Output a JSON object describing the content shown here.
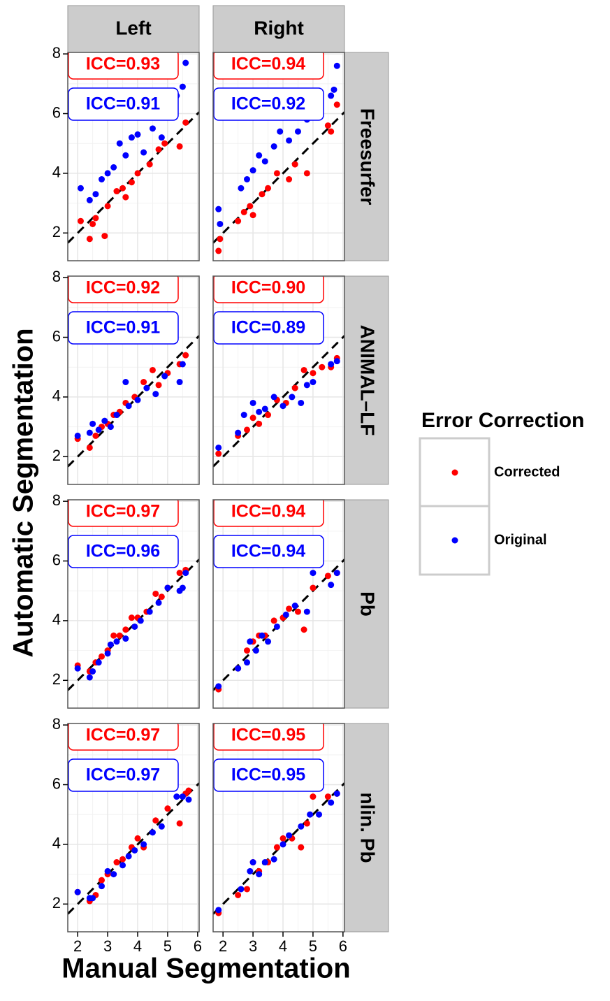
{
  "chart_data": {
    "type": "scatter",
    "x_label": "Manual Segmentation",
    "y_label": "Automatic Segmentation",
    "legend_title": "Error Correction",
    "legend": [
      {
        "name": "Corrected",
        "color": "#ff0000"
      },
      {
        "name": "Original",
        "color": "#0000ff"
      }
    ],
    "columns": [
      "Left",
      "Right"
    ],
    "rows": [
      "Freesurfer",
      "ANIMAL–LF",
      "Pb",
      "nlin. Pb"
    ],
    "xlim": [
      1.67,
      6.05
    ],
    "ylim": [
      1.07,
      8.05
    ],
    "xticks": [
      2,
      3,
      4,
      5,
      6
    ],
    "yticks": [
      2,
      4,
      6,
      8
    ],
    "grid": true,
    "panels": [
      {
        "column": 0,
        "row": 0,
        "annotations": [
          "ICC=0.93",
          "ICC=0.91"
        ],
        "series": [
          {
            "x": [
              2.1,
              2.4,
              2.5,
              2.6,
              2.9,
              3.0,
              3.3,
              3.5,
              3.6,
              3.8,
              4.0,
              4.4,
              4.7,
              4.9,
              5.4,
              5.6
            ],
            "values": [
              2.4,
              1.8,
              2.3,
              2.5,
              1.9,
              2.9,
              3.4,
              3.5,
              3.2,
              3.7,
              4.0,
              4.3,
              4.8,
              5.0,
              4.9,
              5.7
            ]
          },
          {
            "x": [
              2.1,
              2.4,
              2.6,
              2.8,
              3.0,
              3.2,
              3.4,
              3.6,
              3.8,
              4.0,
              4.2,
              4.5,
              4.8,
              5.3,
              5.5,
              5.6
            ],
            "values": [
              3.5,
              3.1,
              3.3,
              3.8,
              4.0,
              4.2,
              5.0,
              4.6,
              5.2,
              5.3,
              4.7,
              5.5,
              5.2,
              6.6,
              6.9,
              7.7
            ]
          }
        ]
      },
      {
        "column": 1,
        "row": 0,
        "annotations": [
          "ICC=0.94",
          "ICC=0.92"
        ],
        "series": [
          {
            "x": [
              1.85,
              1.9,
              2.5,
              2.7,
              2.9,
              3.0,
              3.3,
              3.5,
              3.8,
              4.2,
              4.4,
              4.8,
              5.5,
              5.6,
              5.8
            ],
            "values": [
              1.4,
              1.8,
              2.4,
              2.7,
              2.9,
              2.6,
              3.3,
              3.5,
              4.0,
              3.8,
              4.3,
              4.0,
              5.6,
              5.4,
              6.3
            ]
          },
          {
            "x": [
              1.85,
              1.9,
              2.6,
              2.8,
              3.0,
              3.2,
              3.4,
              3.7,
              3.9,
              4.2,
              4.5,
              4.8,
              5.6,
              5.7,
              5.8
            ],
            "values": [
              2.8,
              2.3,
              3.5,
              3.8,
              4.1,
              4.6,
              4.4,
              4.9,
              5.4,
              5.1,
              5.4,
              5.8,
              6.6,
              6.8,
              7.6
            ]
          }
        ]
      },
      {
        "column": 0,
        "row": 1,
        "annotations": [
          "ICC=0.92",
          "ICC=0.91"
        ],
        "series": [
          {
            "x": [
              2.0,
              2.4,
              2.6,
              2.8,
              3.0,
              3.2,
              3.4,
              3.6,
              3.9,
              4.2,
              4.5,
              4.7,
              5.0,
              5.4,
              5.6
            ],
            "values": [
              2.6,
              2.3,
              2.7,
              3.0,
              3.1,
              3.4,
              3.5,
              3.8,
              4.0,
              4.5,
              4.9,
              4.4,
              4.8,
              5.1,
              5.4
            ]
          },
          {
            "x": [
              2.0,
              2.4,
              2.5,
              2.7,
              2.9,
              3.1,
              3.3,
              3.6,
              3.7,
              4.0,
              4.3,
              4.6,
              4.9,
              5.4,
              5.5
            ],
            "values": [
              2.7,
              2.8,
              3.1,
              2.9,
              3.2,
              3.0,
              3.4,
              4.5,
              3.7,
              3.9,
              4.3,
              4.1,
              4.7,
              4.5,
              5.1
            ]
          }
        ]
      },
      {
        "column": 1,
        "row": 1,
        "annotations": [
          "ICC=0.90",
          "ICC=0.89"
        ],
        "series": [
          {
            "x": [
              1.85,
              2.5,
              2.8,
              3.0,
              3.2,
              3.5,
              3.8,
              4.1,
              4.4,
              4.7,
              5.0,
              5.3,
              5.6,
              5.8
            ],
            "values": [
              2.1,
              2.7,
              2.9,
              3.3,
              3.1,
              3.4,
              3.9,
              3.8,
              4.3,
              4.9,
              4.8,
              5.0,
              5.0,
              5.3
            ]
          },
          {
            "x": [
              1.85,
              2.5,
              2.7,
              3.0,
              3.2,
              3.4,
              3.7,
              4.0,
              4.3,
              4.6,
              4.8,
              5.0,
              5.6,
              5.8
            ],
            "values": [
              2.3,
              2.8,
              3.4,
              3.8,
              3.5,
              3.6,
              4.0,
              3.7,
              4.0,
              3.8,
              4.4,
              4.5,
              5.1,
              5.2
            ]
          }
        ]
      },
      {
        "column": 0,
        "row": 2,
        "annotations": [
          "ICC=0.97",
          "ICC=0.96"
        ],
        "series": [
          {
            "x": [
              2.0,
              2.4,
              2.6,
              2.8,
              3.0,
              3.2,
              3.4,
              3.6,
              3.8,
              4.0,
              4.3,
              4.6,
              4.8,
              5.0,
              5.4,
              5.6
            ],
            "values": [
              2.5,
              2.3,
              2.6,
              2.8,
              3.0,
              3.5,
              3.5,
              3.7,
              4.1,
              4.1,
              4.3,
              4.9,
              4.8,
              5.1,
              5.6,
              5.7
            ]
          },
          {
            "x": [
              2.0,
              2.4,
              2.5,
              2.7,
              3.0,
              3.1,
              3.3,
              3.6,
              3.9,
              4.1,
              4.4,
              4.7,
              5.0,
              5.4,
              5.5,
              5.6
            ],
            "values": [
              2.4,
              2.1,
              2.3,
              2.6,
              2.9,
              3.2,
              3.3,
              3.4,
              3.8,
              4.0,
              4.3,
              4.6,
              5.1,
              5.0,
              5.1,
              5.6
            ]
          }
        ]
      },
      {
        "column": 1,
        "row": 2,
        "annotations": [
          "ICC=0.94",
          "ICC=0.94"
        ],
        "series": [
          {
            "x": [
              1.85,
              2.5,
              2.8,
              3.0,
              3.2,
              3.4,
              3.7,
              4.0,
              4.2,
              4.5,
              4.7,
              5.0,
              5.5,
              5.8
            ],
            "values": [
              1.7,
              2.4,
              3.0,
              3.3,
              3.5,
              3.5,
              4.0,
              4.1,
              4.4,
              4.3,
              3.7,
              5.1,
              5.5,
              5.6
            ]
          },
          {
            "x": [
              1.85,
              2.5,
              2.8,
              2.9,
              3.1,
              3.3,
              3.5,
              3.8,
              4.1,
              4.4,
              4.8,
              5.0,
              5.6,
              5.8
            ],
            "values": [
              1.8,
              2.4,
              2.6,
              3.3,
              3.0,
              3.5,
              3.3,
              3.8,
              4.2,
              4.5,
              4.3,
              5.6,
              5.2,
              5.6
            ]
          }
        ]
      },
      {
        "column": 0,
        "row": 3,
        "annotations": [
          "ICC=0.97",
          "ICC=0.97"
        ],
        "series": [
          {
            "x": [
              2.0,
              2.4,
              2.6,
              2.8,
              3.0,
              3.3,
              3.5,
              3.8,
              4.0,
              4.2,
              4.6,
              5.0,
              5.4,
              5.6,
              5.7
            ],
            "values": [
              2.4,
              2.1,
              2.3,
              2.8,
              3.0,
              3.4,
              3.5,
              3.9,
              4.2,
              3.9,
              4.8,
              5.2,
              4.7,
              5.7,
              5.8
            ]
          },
          {
            "x": [
              2.0,
              2.4,
              2.5,
              2.8,
              3.0,
              3.2,
              3.5,
              3.7,
              3.9,
              4.2,
              4.5,
              4.8,
              5.3,
              5.5,
              5.7
            ],
            "values": [
              2.4,
              2.2,
              2.2,
              2.6,
              3.1,
              3.0,
              3.3,
              3.6,
              3.8,
              4.0,
              4.4,
              4.6,
              5.6,
              5.6,
              5.5
            ]
          }
        ]
      },
      {
        "column": 1,
        "row": 3,
        "annotations": [
          "ICC=0.95",
          "ICC=0.95"
        ],
        "series": [
          {
            "x": [
              1.85,
              2.5,
              2.8,
              3.0,
              3.2,
              3.5,
              3.8,
              4.0,
              4.3,
              4.6,
              4.8,
              5.0,
              5.5,
              5.8
            ],
            "values": [
              1.7,
              2.3,
              2.5,
              3.4,
              3.1,
              3.4,
              3.9,
              4.2,
              4.2,
              3.9,
              4.7,
              5.6,
              5.6,
              5.7
            ]
          },
          {
            "x": [
              1.85,
              2.6,
              2.9,
              3.0,
              3.2,
              3.4,
              3.7,
              4.0,
              4.2,
              4.6,
              4.9,
              5.2,
              5.6,
              5.8
            ],
            "values": [
              1.8,
              2.5,
              3.1,
              3.4,
              3.0,
              3.4,
              3.5,
              4.0,
              4.3,
              4.6,
              5.0,
              5.0,
              5.4,
              5.7
            ]
          }
        ]
      }
    ]
  }
}
